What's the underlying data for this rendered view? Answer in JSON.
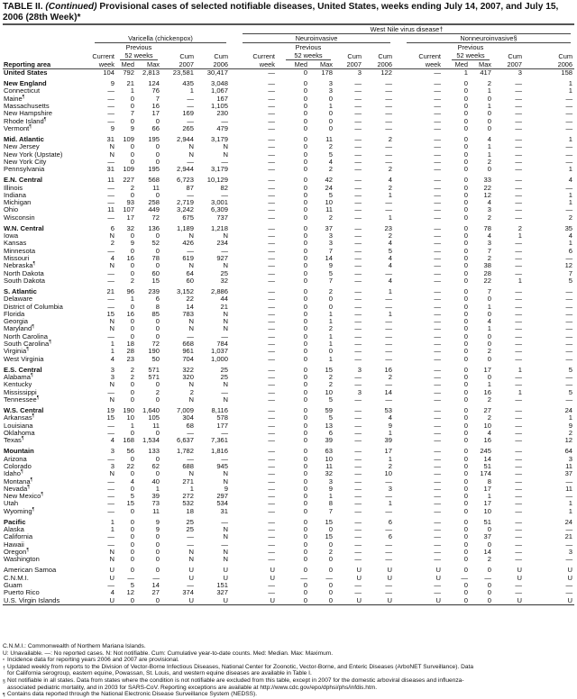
{
  "title": {
    "prefix": "TABLE II. ",
    "continued": "(Continued)",
    "text": " Provisional cases of selected notifiable diseases, United States, weeks ending July 14, 2007, and July 15, 2006 (28th Week)*"
  },
  "header": {
    "wnv": "West Nile virus disease†",
    "varicella": "Varicella (chickenpox)",
    "neuro": "Neuroinvasive",
    "nonneuro": "Nonneuroinvasive§",
    "previous": "Previous",
    "weeks52": "52 weeks",
    "current": "Current",
    "week": "week",
    "med": "Med",
    "max": "Max",
    "cum": "Cum",
    "y2007": "2007",
    "y2006": "2006",
    "reporting_area": "Reporting area"
  },
  "rows": [
    {
      "area": "United States",
      "bold": true,
      "v": [
        "104",
        "792",
        "2,813",
        "23,581",
        "30,417",
        "—",
        "0",
        "178",
        "3",
        "122",
        "—",
        "1",
        "417",
        "3",
        "158"
      ]
    },
    {
      "area": "New England",
      "bold": true,
      "gap": true,
      "v": [
        "9",
        "21",
        "124",
        "435",
        "3,048",
        "—",
        "0",
        "3",
        "—",
        "—",
        "—",
        "0",
        "2",
        "—",
        "1"
      ]
    },
    {
      "area": "Connecticut",
      "v": [
        "—",
        "1",
        "76",
        "1",
        "1,067",
        "—",
        "0",
        "3",
        "—",
        "—",
        "—",
        "0",
        "1",
        "—",
        "1"
      ]
    },
    {
      "area": "Maine",
      "sup": "¶",
      "v": [
        "—",
        "0",
        "7",
        "—",
        "167",
        "—",
        "0",
        "0",
        "—",
        "—",
        "—",
        "0",
        "0",
        "—",
        "—"
      ]
    },
    {
      "area": "Massachusetts",
      "v": [
        "—",
        "0",
        "16",
        "—",
        "1,105",
        "—",
        "0",
        "1",
        "—",
        "—",
        "—",
        "0",
        "1",
        "—",
        "—"
      ]
    },
    {
      "area": "New Hampshire",
      "v": [
        "—",
        "7",
        "17",
        "169",
        "230",
        "—",
        "0",
        "0",
        "—",
        "—",
        "—",
        "0",
        "0",
        "—",
        "—"
      ]
    },
    {
      "area": "Rhode Island",
      "sup": "¶",
      "v": [
        "—",
        "0",
        "0",
        "—",
        "—",
        "—",
        "0",
        "0",
        "—",
        "—",
        "—",
        "0",
        "0",
        "—",
        "—"
      ]
    },
    {
      "area": "Vermont",
      "sup": "¶",
      "v": [
        "9",
        "9",
        "66",
        "265",
        "479",
        "—",
        "0",
        "0",
        "—",
        "—",
        "—",
        "0",
        "0",
        "—",
        "—"
      ]
    },
    {
      "area": "Mid. Atlantic",
      "bold": true,
      "gap": true,
      "v": [
        "31",
        "109",
        "195",
        "2,944",
        "3,179",
        "—",
        "0",
        "11",
        "—",
        "2",
        "—",
        "0",
        "4",
        "—",
        "1"
      ]
    },
    {
      "area": "New Jersey",
      "v": [
        "N",
        "0",
        "0",
        "N",
        "N",
        "—",
        "0",
        "2",
        "—",
        "—",
        "—",
        "0",
        "1",
        "—",
        "—"
      ]
    },
    {
      "area": "New York (Upstate)",
      "v": [
        "N",
        "0",
        "0",
        "N",
        "N",
        "—",
        "0",
        "5",
        "—",
        "—",
        "—",
        "0",
        "1",
        "—",
        "—"
      ]
    },
    {
      "area": "New York City",
      "v": [
        "—",
        "0",
        "0",
        "—",
        "—",
        "—",
        "0",
        "4",
        "—",
        "—",
        "—",
        "0",
        "2",
        "—",
        "—"
      ]
    },
    {
      "area": "Pennsylvania",
      "v": [
        "31",
        "109",
        "195",
        "2,944",
        "3,179",
        "—",
        "0",
        "2",
        "—",
        "2",
        "—",
        "0",
        "0",
        "—",
        "1"
      ]
    },
    {
      "area": "E.N. Central",
      "bold": true,
      "gap": true,
      "v": [
        "11",
        "227",
        "568",
        "6,723",
        "10,129",
        "—",
        "0",
        "42",
        "—",
        "4",
        "—",
        "0",
        "33",
        "—",
        "4"
      ]
    },
    {
      "area": "Illinois",
      "v": [
        "—",
        "2",
        "11",
        "87",
        "82",
        "—",
        "0",
        "24",
        "—",
        "2",
        "—",
        "0",
        "22",
        "—",
        "—"
      ]
    },
    {
      "area": "Indiana",
      "v": [
        "—",
        "0",
        "0",
        "—",
        "—",
        "—",
        "0",
        "5",
        "—",
        "1",
        "—",
        "0",
        "12",
        "—",
        "1"
      ]
    },
    {
      "area": "Michigan",
      "v": [
        "—",
        "93",
        "258",
        "2,719",
        "3,001",
        "—",
        "0",
        "10",
        "—",
        "—",
        "—",
        "0",
        "4",
        "—",
        "1"
      ]
    },
    {
      "area": "Ohio",
      "v": [
        "11",
        "107",
        "449",
        "3,242",
        "6,309",
        "—",
        "0",
        "11",
        "—",
        "—",
        "—",
        "0",
        "3",
        "—",
        "—"
      ]
    },
    {
      "area": "Wisconsin",
      "v": [
        "—",
        "17",
        "72",
        "675",
        "737",
        "—",
        "0",
        "2",
        "—",
        "1",
        "—",
        "0",
        "2",
        "—",
        "2"
      ]
    },
    {
      "area": "W.N. Central",
      "bold": true,
      "gap": true,
      "v": [
        "6",
        "32",
        "136",
        "1,189",
        "1,218",
        "—",
        "0",
        "37",
        "—",
        "23",
        "—",
        "0",
        "78",
        "2",
        "35"
      ]
    },
    {
      "area": "Iowa",
      "v": [
        "N",
        "0",
        "0",
        "N",
        "N",
        "—",
        "0",
        "3",
        "—",
        "2",
        "—",
        "0",
        "4",
        "1",
        "4"
      ]
    },
    {
      "area": "Kansas",
      "v": [
        "2",
        "9",
        "52",
        "426",
        "234",
        "—",
        "0",
        "3",
        "—",
        "4",
        "—",
        "0",
        "3",
        "—",
        "1"
      ]
    },
    {
      "area": "Minnesota",
      "v": [
        "—",
        "0",
        "0",
        "—",
        "—",
        "—",
        "0",
        "7",
        "—",
        "5",
        "—",
        "0",
        "7",
        "—",
        "6"
      ]
    },
    {
      "area": "Missouri",
      "v": [
        "4",
        "16",
        "78",
        "619",
        "927",
        "—",
        "0",
        "14",
        "—",
        "4",
        "—",
        "0",
        "2",
        "—",
        "—"
      ]
    },
    {
      "area": "Nebraska",
      "sup": "¶",
      "v": [
        "N",
        "0",
        "0",
        "N",
        "N",
        "—",
        "0",
        "9",
        "—",
        "4",
        "—",
        "0",
        "38",
        "—",
        "12"
      ]
    },
    {
      "area": "North Dakota",
      "v": [
        "—",
        "0",
        "60",
        "64",
        "25",
        "—",
        "0",
        "5",
        "—",
        "—",
        "—",
        "0",
        "28",
        "—",
        "7"
      ]
    },
    {
      "area": "South Dakota",
      "v": [
        "—",
        "2",
        "15",
        "60",
        "32",
        "—",
        "0",
        "7",
        "—",
        "4",
        "—",
        "0",
        "22",
        "1",
        "5"
      ]
    },
    {
      "area": "S. Atlantic",
      "bold": true,
      "gap": true,
      "v": [
        "21",
        "96",
        "239",
        "3,152",
        "2,886",
        "—",
        "0",
        "2",
        "—",
        "1",
        "—",
        "0",
        "7",
        "—",
        "—"
      ]
    },
    {
      "area": "Delaware",
      "v": [
        "—",
        "1",
        "6",
        "22",
        "44",
        "—",
        "0",
        "0",
        "—",
        "—",
        "—",
        "0",
        "0",
        "—",
        "—"
      ]
    },
    {
      "area": "District of Columbia",
      "v": [
        "—",
        "0",
        "8",
        "14",
        "21",
        "—",
        "0",
        "0",
        "—",
        "—",
        "—",
        "0",
        "1",
        "—",
        "—"
      ]
    },
    {
      "area": "Florida",
      "v": [
        "15",
        "16",
        "85",
        "783",
        "N",
        "—",
        "0",
        "1",
        "—",
        "1",
        "—",
        "0",
        "0",
        "—",
        "—"
      ]
    },
    {
      "area": "Georgia",
      "v": [
        "N",
        "0",
        "0",
        "N",
        "N",
        "—",
        "0",
        "1",
        "—",
        "—",
        "—",
        "0",
        "4",
        "—",
        "—"
      ]
    },
    {
      "area": "Maryland",
      "sup": "¶",
      "v": [
        "N",
        "0",
        "0",
        "N",
        "N",
        "—",
        "0",
        "2",
        "—",
        "—",
        "—",
        "0",
        "1",
        "—",
        "—"
      ]
    },
    {
      "area": "North Carolina",
      "v": [
        "—",
        "0",
        "0",
        "—",
        "—",
        "—",
        "0",
        "1",
        "—",
        "—",
        "—",
        "0",
        "0",
        "—",
        "—"
      ]
    },
    {
      "area": "South Carolina",
      "sup": "¶",
      "v": [
        "1",
        "18",
        "72",
        "668",
        "784",
        "—",
        "0",
        "1",
        "—",
        "—",
        "—",
        "0",
        "0",
        "—",
        "—"
      ]
    },
    {
      "area": "Virginia",
      "sup": "¶",
      "v": [
        "1",
        "28",
        "190",
        "961",
        "1,037",
        "—",
        "0",
        "0",
        "—",
        "—",
        "—",
        "0",
        "2",
        "—",
        "—"
      ]
    },
    {
      "area": "West Virginia",
      "v": [
        "4",
        "23",
        "50",
        "704",
        "1,000",
        "—",
        "0",
        "1",
        "—",
        "—",
        "—",
        "0",
        "0",
        "—",
        "—"
      ]
    },
    {
      "area": "E.S. Central",
      "bold": true,
      "gap": true,
      "v": [
        "3",
        "2",
        "571",
        "322",
        "25",
        "—",
        "0",
        "15",
        "3",
        "16",
        "—",
        "0",
        "17",
        "1",
        "5"
      ]
    },
    {
      "area": "Alabama",
      "sup": "¶",
      "v": [
        "3",
        "2",
        "571",
        "320",
        "25",
        "—",
        "0",
        "2",
        "—",
        "2",
        "—",
        "0",
        "0",
        "—",
        "—"
      ]
    },
    {
      "area": "Kentucky",
      "v": [
        "N",
        "0",
        "0",
        "N",
        "N",
        "—",
        "0",
        "2",
        "—",
        "—",
        "—",
        "0",
        "1",
        "—",
        "—"
      ]
    },
    {
      "area": "Mississippi",
      "v": [
        "—",
        "0",
        "2",
        "2",
        "—",
        "—",
        "0",
        "10",
        "3",
        "14",
        "—",
        "0",
        "16",
        "1",
        "5"
      ]
    },
    {
      "area": "Tennessee",
      "sup": "¶",
      "v": [
        "N",
        "0",
        "0",
        "N",
        "N",
        "—",
        "0",
        "5",
        "—",
        "—",
        "—",
        "0",
        "2",
        "—",
        "—"
      ]
    },
    {
      "area": "W.S. Central",
      "bold": true,
      "gap": true,
      "v": [
        "19",
        "190",
        "1,640",
        "7,009",
        "8,116",
        "—",
        "0",
        "59",
        "—",
        "53",
        "—",
        "0",
        "27",
        "—",
        "24"
      ]
    },
    {
      "area": "Arkansas",
      "sup": "¶",
      "v": [
        "15",
        "10",
        "105",
        "304",
        "578",
        "—",
        "0",
        "5",
        "—",
        "4",
        "—",
        "0",
        "2",
        "—",
        "1"
      ]
    },
    {
      "area": "Louisiana",
      "v": [
        "—",
        "1",
        "11",
        "68",
        "177",
        "—",
        "0",
        "13",
        "—",
        "9",
        "—",
        "0",
        "10",
        "—",
        "9"
      ]
    },
    {
      "area": "Oklahoma",
      "v": [
        "—",
        "0",
        "0",
        "—",
        "—",
        "—",
        "0",
        "6",
        "—",
        "1",
        "—",
        "0",
        "4",
        "—",
        "2"
      ]
    },
    {
      "area": "Texas",
      "sup": "¶",
      "v": [
        "4",
        "168",
        "1,534",
        "6,637",
        "7,361",
        "—",
        "0",
        "39",
        "—",
        "39",
        "—",
        "0",
        "16",
        "—",
        "12"
      ]
    },
    {
      "area": "Mountain",
      "bold": true,
      "gap": true,
      "v": [
        "3",
        "56",
        "133",
        "1,782",
        "1,816",
        "—",
        "0",
        "63",
        "—",
        "17",
        "—",
        "0",
        "245",
        "—",
        "64"
      ]
    },
    {
      "area": "Arizona",
      "v": [
        "—",
        "0",
        "0",
        "—",
        "—",
        "—",
        "0",
        "10",
        "—",
        "1",
        "—",
        "0",
        "14",
        "—",
        "3"
      ]
    },
    {
      "area": "Colorado",
      "v": [
        "3",
        "22",
        "62",
        "688",
        "945",
        "—",
        "0",
        "11",
        "—",
        "2",
        "—",
        "0",
        "51",
        "—",
        "11"
      ]
    },
    {
      "area": "Idaho",
      "sup": "¶",
      "v": [
        "N",
        "0",
        "0",
        "N",
        "N",
        "—",
        "0",
        "32",
        "—",
        "10",
        "—",
        "0",
        "174",
        "—",
        "37"
      ]
    },
    {
      "area": "Montana",
      "sup": "¶",
      "v": [
        "—",
        "4",
        "40",
        "271",
        "N",
        "—",
        "0",
        "3",
        "—",
        "—",
        "—",
        "0",
        "8",
        "—",
        "—"
      ]
    },
    {
      "area": "Nevada",
      "sup": "¶",
      "v": [
        "—",
        "0",
        "1",
        "1",
        "9",
        "—",
        "0",
        "9",
        "—",
        "3",
        "—",
        "0",
        "17",
        "—",
        "11"
      ]
    },
    {
      "area": "New Mexico",
      "sup": "¶",
      "v": [
        "—",
        "5",
        "39",
        "272",
        "297",
        "—",
        "0",
        "1",
        "—",
        "—",
        "—",
        "0",
        "1",
        "—",
        "—"
      ]
    },
    {
      "area": "Utah",
      "v": [
        "—",
        "15",
        "73",
        "532",
        "534",
        "—",
        "0",
        "8",
        "—",
        "1",
        "—",
        "0",
        "17",
        "—",
        "1"
      ]
    },
    {
      "area": "Wyoming",
      "sup": "¶",
      "v": [
        "—",
        "0",
        "11",
        "18",
        "31",
        "—",
        "0",
        "7",
        "—",
        "—",
        "—",
        "0",
        "10",
        "—",
        "1"
      ]
    },
    {
      "area": "Pacific",
      "bold": true,
      "gap": true,
      "v": [
        "1",
        "0",
        "9",
        "25",
        "—",
        "—",
        "0",
        "15",
        "—",
        "6",
        "—",
        "0",
        "51",
        "—",
        "24"
      ]
    },
    {
      "area": "Alaska",
      "v": [
        "1",
        "0",
        "9",
        "25",
        "N",
        "—",
        "0",
        "0",
        "—",
        "—",
        "—",
        "0",
        "0",
        "—",
        "—"
      ]
    },
    {
      "area": "California",
      "v": [
        "—",
        "0",
        "0",
        "—",
        "N",
        "—",
        "0",
        "15",
        "—",
        "6",
        "—",
        "0",
        "37",
        "—",
        "21"
      ]
    },
    {
      "area": "Hawaii",
      "v": [
        "—",
        "0",
        "0",
        "—",
        "—",
        "—",
        "0",
        "0",
        "—",
        "—",
        "—",
        "0",
        "0",
        "—",
        "—"
      ]
    },
    {
      "area": "Oregon",
      "sup": "¶",
      "v": [
        "N",
        "0",
        "0",
        "N",
        "N",
        "—",
        "0",
        "2",
        "—",
        "—",
        "—",
        "0",
        "14",
        "—",
        "3"
      ]
    },
    {
      "area": "Washington",
      "v": [
        "N",
        "0",
        "0",
        "N",
        "N",
        "—",
        "0",
        "0",
        "—",
        "—",
        "—",
        "0",
        "2",
        "—",
        "—"
      ]
    },
    {
      "area": "American Samoa",
      "gap": true,
      "v": [
        "U",
        "0",
        "0",
        "U",
        "U",
        "U",
        "0",
        "0",
        "U",
        "U",
        "U",
        "0",
        "0",
        "U",
        "U"
      ]
    },
    {
      "area": "C.N.M.I.",
      "v": [
        "U",
        "—",
        "—",
        "U",
        "U",
        "U",
        "—",
        "—",
        "U",
        "U",
        "U",
        "—",
        "—",
        "U",
        "U"
      ]
    },
    {
      "area": "Guam",
      "v": [
        "—",
        "5",
        "14",
        "—",
        "151",
        "—",
        "0",
        "0",
        "—",
        "—",
        "—",
        "0",
        "0",
        "—",
        "—"
      ]
    },
    {
      "area": "Puerto Rico",
      "v": [
        "4",
        "12",
        "27",
        "374",
        "327",
        "—",
        "0",
        "0",
        "—",
        "—",
        "—",
        "0",
        "0",
        "—",
        "—"
      ]
    },
    {
      "area": "U.S. Virgin Islands",
      "v": [
        "U",
        "0",
        "0",
        "U",
        "U",
        "U",
        "0",
        "0",
        "U",
        "U",
        "U",
        "0",
        "0",
        "U",
        "U"
      ]
    }
  ],
  "notes": {
    "line1": "C.N.M.I.: Commonwealth of Northern Mariana Islands.",
    "line2": "U: Unavailable.   —: No reported cases.   N: Not notifiable.   Cum: Cumulative year-to-date counts.   Med: Median.   Max: Maximum.",
    "n1_mark": "*",
    "n1": "Incidence data for reporting years 2006 and 2007 are provisional.",
    "n2_mark": "†",
    "n2a": "Updated weekly from reports to the Division of Vector-Borne Infectious Diseases, National Center for Zoonotic, Vector-Borne, and Enteric Diseases (ArboNET Surveillance). Data",
    "n2b": "for California serogroup, eastern equine, Powassan, St. Louis, and western equine diseases are available in Table I.",
    "n3_mark": "§",
    "n3a": "Not notifiable in all states. Data from states where the condition is not notifiable are excluded from this table, except in 2007 for the domestic arboviral diseases and influenza-",
    "n3b": "associated pediatric mortality, and in 2003 for SARS-CoV. Reporting exceptions are available at http://www.cdc.gov/epo/dphsi/phs/infdis.htm.",
    "n4_mark": "¶",
    "n4": "Contains data reported through the National Electronic Disease Surveillance System (NEDSS)."
  }
}
